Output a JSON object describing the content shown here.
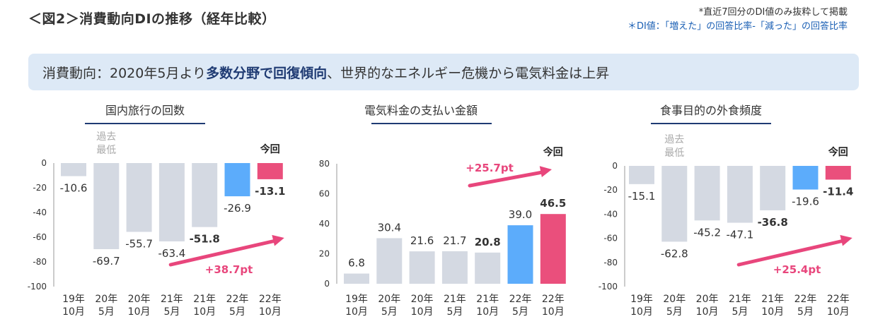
{
  "title": "＜図2＞消費動向DIの推移（経年比較）",
  "notes": {
    "line1": "*直近7回分のDI値のみ抜粋して掲載",
    "line2": "＊DI値：「増えた」の回答比率-「減った」の回答比率"
  },
  "banner": {
    "part1": "消費動向：2020年5月より",
    "bold1": "多数分野で回復傾向",
    "part2": "、世界的なエネルギー危機から電気料金は上昇"
  },
  "colors": {
    "gray": "#d4d9e2",
    "blue": "#5cacfb",
    "pink": "#ea4f7c",
    "arrow": "#e8467c",
    "title_line": "#1f3b73"
  },
  "chart_data": [
    {
      "type": "bar",
      "title": "国内旅行の回数",
      "categories": [
        [
          "19年",
          "10月"
        ],
        [
          "20年",
          "5月"
        ],
        [
          "20年",
          "10月"
        ],
        [
          "21年",
          "5月"
        ],
        [
          "21年",
          "10月"
        ],
        [
          "22年",
          "5月"
        ],
        [
          "22年",
          "10月"
        ]
      ],
      "values": [
        -10.6,
        -69.7,
        -55.7,
        -63.4,
        -51.8,
        -26.9,
        -13.1
      ],
      "value_labels": [
        "-10.6",
        "-69.7",
        "-55.7",
        "-63.4",
        "-51.8",
        "-26.9",
        "-13.1"
      ],
      "bold_indices": [
        4,
        6
      ],
      "bar_colors": [
        "gray",
        "gray",
        "gray",
        "gray",
        "gray",
        "blue",
        "pink"
      ],
      "yticks": [
        0,
        -20,
        -40,
        -60,
        -80,
        -100
      ],
      "ylim": [
        -100,
        0
      ],
      "annotation_lowest": [
        "過去",
        "最低"
      ],
      "lowest_index": 1,
      "current_label": "今回",
      "change": "+38.7pt"
    },
    {
      "type": "bar",
      "title": "電気料金の支払い金額",
      "categories": [
        [
          "19年",
          "10月"
        ],
        [
          "20年",
          "5月"
        ],
        [
          "20年",
          "10月"
        ],
        [
          "21年",
          "5月"
        ],
        [
          "21年",
          "10月"
        ],
        [
          "22年",
          "5月"
        ],
        [
          "22年",
          "10月"
        ]
      ],
      "values": [
        6.8,
        30.4,
        21.6,
        21.7,
        20.8,
        39.0,
        46.5
      ],
      "value_labels": [
        "6.8",
        "30.4",
        "21.6",
        "21.7",
        "20.8",
        "39.0",
        "46.5"
      ],
      "bold_indices": [
        4,
        6
      ],
      "bar_colors": [
        "gray",
        "gray",
        "gray",
        "gray",
        "gray",
        "blue",
        "pink"
      ],
      "yticks": [
        0,
        20,
        40,
        60,
        80
      ],
      "ylim": [
        0,
        80
      ],
      "current_label": "今回",
      "change": "+25.7pt"
    },
    {
      "type": "bar",
      "title": "食事目的の外食頻度",
      "categories": [
        [
          "19年",
          "10月"
        ],
        [
          "20年",
          "5月"
        ],
        [
          "20年",
          "10月"
        ],
        [
          "21年",
          "5月"
        ],
        [
          "21年",
          "10月"
        ],
        [
          "22年",
          "5月"
        ],
        [
          "22年",
          "10月"
        ]
      ],
      "values": [
        -15.1,
        -62.8,
        -45.2,
        -47.1,
        -36.8,
        -19.6,
        -11.4
      ],
      "value_labels": [
        "-15.1",
        "-62.8",
        "-45.2",
        "-47.1",
        "-36.8",
        "-19.6",
        "-11.4"
      ],
      "bold_indices": [
        4,
        6
      ],
      "bar_colors": [
        "gray",
        "gray",
        "gray",
        "gray",
        "gray",
        "blue",
        "pink"
      ],
      "yticks": [
        0,
        -20,
        -40,
        -60,
        -80,
        -100
      ],
      "ylim": [
        -100,
        0
      ],
      "annotation_lowest": [
        "過去",
        "最低"
      ],
      "lowest_index": 1,
      "current_label": "今回",
      "change": "+25.4pt"
    }
  ]
}
